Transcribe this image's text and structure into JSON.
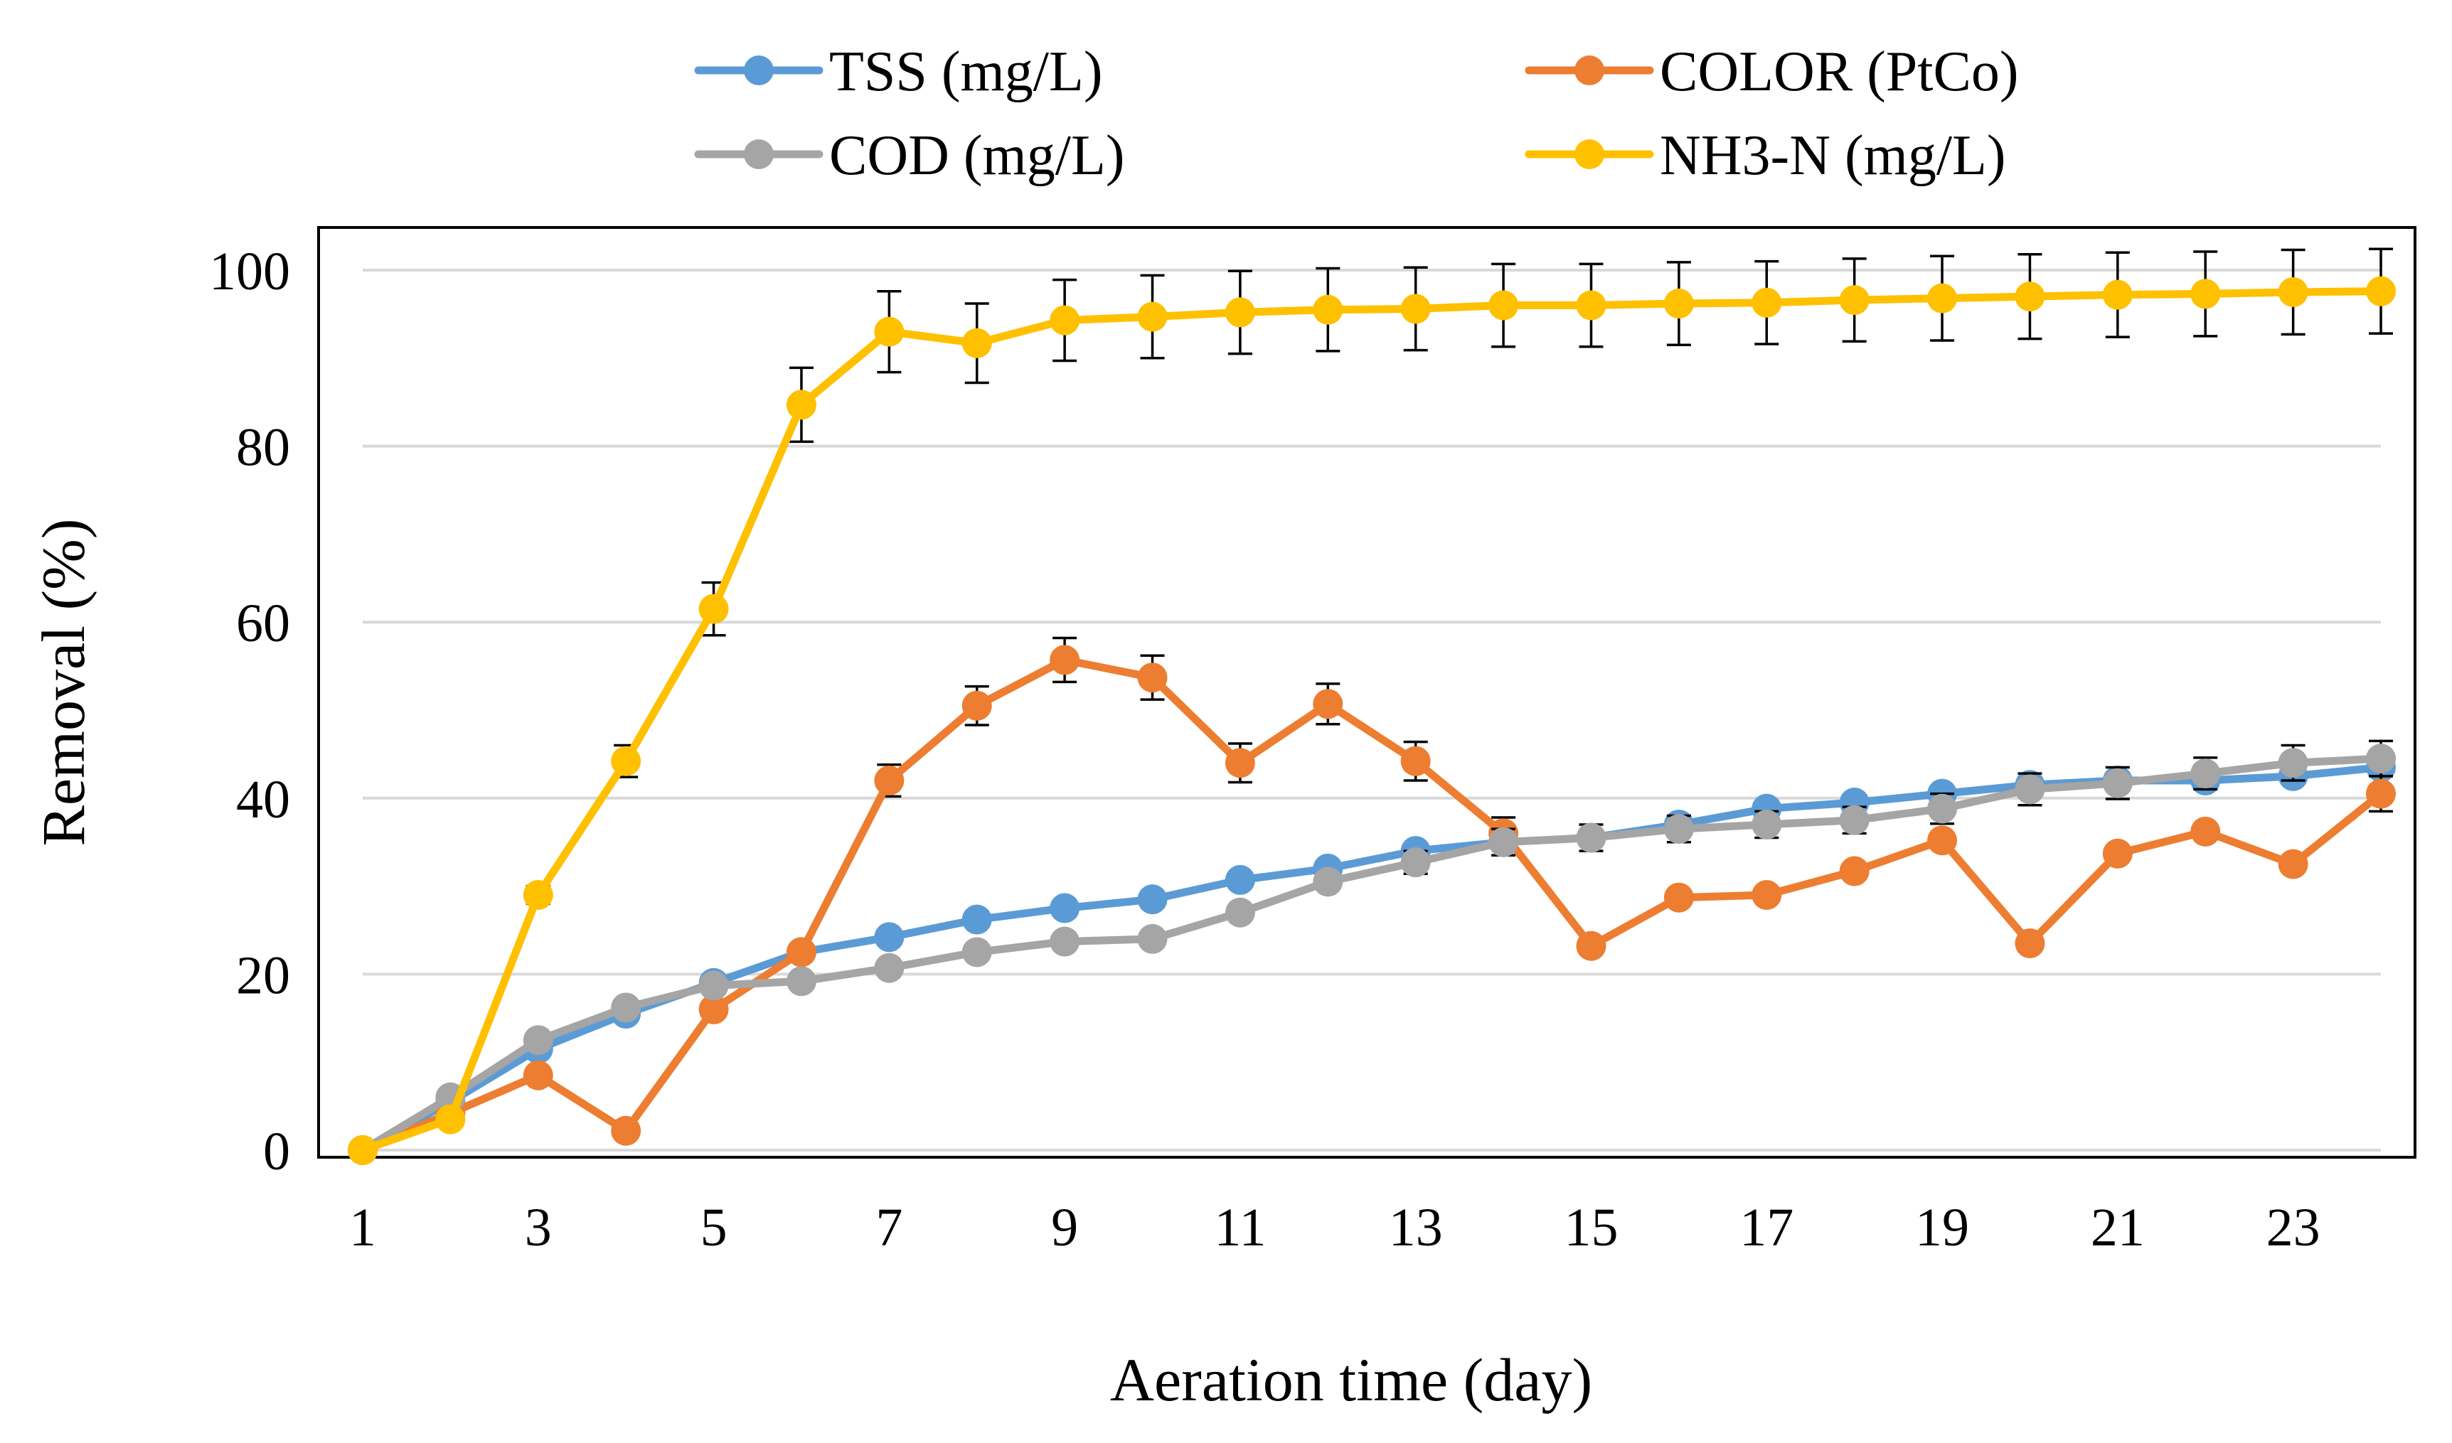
{
  "chart_data": {
    "type": "line",
    "title": "",
    "xlabel": "Aeration time (day)",
    "ylabel": "Removal  (%)",
    "x": [
      1,
      2,
      3,
      4,
      5,
      6,
      7,
      8,
      9,
      10,
      11,
      12,
      13,
      14,
      15,
      16,
      17,
      18,
      19,
      20,
      21,
      22,
      23,
      24
    ],
    "xticks": [
      "1",
      "3",
      "5",
      "7",
      "9",
      "11",
      "13",
      "15",
      "17",
      "19",
      "21",
      "23"
    ],
    "xtick_values": [
      1,
      3,
      5,
      7,
      9,
      11,
      13,
      15,
      17,
      19,
      21,
      23
    ],
    "xlim": [
      1,
      24
    ],
    "ylim": [
      0,
      100
    ],
    "yticks": [
      "0",
      "20",
      "40",
      "60",
      "80",
      "100"
    ],
    "ytick_values": [
      0,
      20,
      40,
      60,
      80,
      100
    ],
    "grid": true,
    "legend_position": "top",
    "series": [
      {
        "name": "TSS (mg/L)",
        "color": "#5B9BD5",
        "values": [
          0,
          5.5,
          11.5,
          15.5,
          19,
          22.5,
          24.2,
          26.2,
          27.5,
          28.5,
          30.7,
          32,
          34,
          35,
          35.5,
          37,
          38.8,
          39.5,
          40.5,
          41.5,
          42,
          42,
          42.5,
          43.5
        ],
        "errors": [
          0,
          0,
          0,
          0,
          0,
          0,
          0,
          0,
          0,
          0,
          0,
          0,
          0,
          0,
          0,
          0,
          0,
          0,
          0,
          0,
          0,
          0,
          0,
          0
        ]
      },
      {
        "name": "COLOR (PtCo)",
        "color": "#ED7D31",
        "values": [
          0,
          4.2,
          8.5,
          2.2,
          16,
          22.5,
          42,
          50.5,
          55.7,
          53.7,
          44,
          50.7,
          44.2,
          36,
          23.2,
          28.7,
          29,
          31.7,
          35.2,
          23.5,
          33.7,
          36.2,
          32.5,
          40.5
        ],
        "errors": [
          0,
          0,
          0,
          0,
          0,
          0,
          1.8,
          2.2,
          2.5,
          2.5,
          2.2,
          2.3,
          2.2,
          1.8,
          0,
          0,
          0,
          0,
          0,
          0,
          0,
          0,
          0,
          2
        ]
      },
      {
        "name": "COD (mg/L)",
        "color": "#A5A5A5",
        "values": [
          0,
          6,
          12.5,
          16.2,
          18.7,
          19.2,
          20.7,
          22.5,
          23.7,
          24,
          27,
          30.5,
          32.7,
          35,
          35.5,
          36.5,
          37,
          37.5,
          38.8,
          41,
          41.7,
          42.8,
          44,
          44.5
        ],
        "errors": [
          0,
          0,
          0,
          0,
          0,
          0,
          0,
          0,
          0,
          0,
          0,
          0,
          1.3,
          1.5,
          1.5,
          1.5,
          1.5,
          1.5,
          1.7,
          1.8,
          1.8,
          1.8,
          2,
          2
        ]
      },
      {
        "name": "NH3-N (mg/L)",
        "color": "#FFC000",
        "values": [
          0,
          3.5,
          29,
          44.2,
          61.5,
          84.7,
          93,
          91.7,
          94.3,
          94.7,
          95.2,
          95.5,
          95.6,
          96,
          96,
          96.2,
          96.3,
          96.6,
          96.8,
          97,
          97.2,
          97.3,
          97.5,
          97.6
        ],
        "errors": [
          0,
          0,
          1,
          1.8,
          3,
          4.2,
          4.6,
          4.5,
          4.6,
          4.7,
          4.7,
          4.7,
          4.7,
          4.7,
          4.7,
          4.7,
          4.7,
          4.7,
          4.8,
          4.8,
          4.8,
          4.8,
          4.8,
          4.8
        ]
      }
    ]
  }
}
